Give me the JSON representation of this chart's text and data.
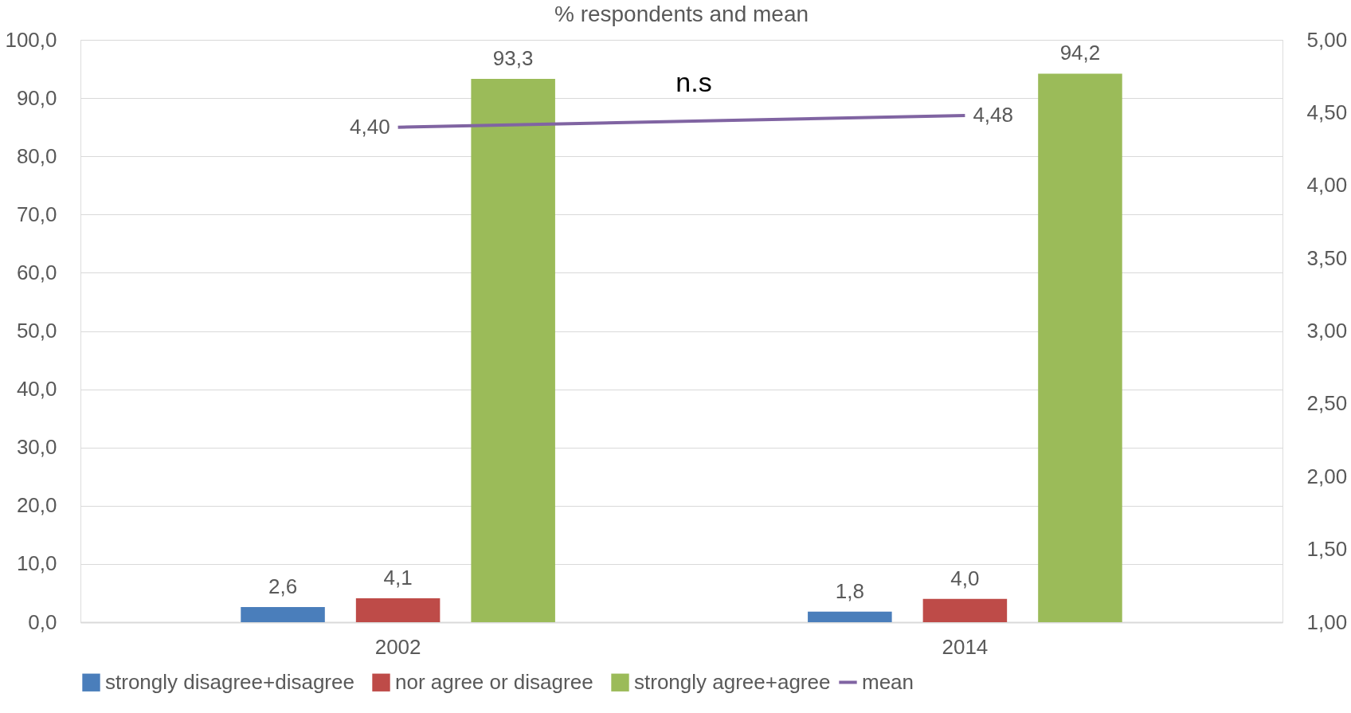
{
  "chart_data": {
    "type": "bar",
    "title": "% respondents and mean",
    "categories": [
      "2002",
      "2014"
    ],
    "series": [
      {
        "name": "strongly disagree+disagree",
        "color": "#4a7ebb",
        "values": [
          2.6,
          1.8
        ],
        "value_labels": [
          "2,6",
          "1,8"
        ]
      },
      {
        "name": "nor agree or disagree",
        "color": "#be4b48",
        "values": [
          4.1,
          4.0
        ],
        "value_labels": [
          "4,1",
          "4,0"
        ]
      },
      {
        "name": "strongly agree+agree",
        "color": "#9bbb59",
        "values": [
          93.3,
          94.2
        ],
        "value_labels": [
          "93,3",
          "94,2"
        ]
      },
      {
        "name": "mean",
        "color": "#8064a2",
        "type": "line",
        "axis": "y2",
        "values": [
          4.4,
          4.48
        ],
        "value_labels": [
          "4,40",
          "4,48"
        ]
      }
    ],
    "ylim": [
      0,
      100
    ],
    "yticks": [
      {
        "value": 0,
        "label": "0,0"
      },
      {
        "value": 10,
        "label": "10,0"
      },
      {
        "value": 20,
        "label": "20,0"
      },
      {
        "value": 30,
        "label": "30,0"
      },
      {
        "value": 40,
        "label": "40,0"
      },
      {
        "value": 50,
        "label": "50,0"
      },
      {
        "value": 60,
        "label": "60,0"
      },
      {
        "value": 70,
        "label": "70,0"
      },
      {
        "value": 80,
        "label": "80,0"
      },
      {
        "value": 90,
        "label": "90,0"
      },
      {
        "value": 100,
        "label": "100,0"
      }
    ],
    "y2lim": [
      1,
      5
    ],
    "y2ticks": [
      {
        "value": 1,
        "label": "1,00"
      },
      {
        "value": 1.5,
        "label": "1,50"
      },
      {
        "value": 2,
        "label": "2,00"
      },
      {
        "value": 2.5,
        "label": "2,50"
      },
      {
        "value": 3,
        "label": "3,00"
      },
      {
        "value": 3.5,
        "label": "3,50"
      },
      {
        "value": 4,
        "label": "4,00"
      },
      {
        "value": 4.5,
        "label": "4,50"
      },
      {
        "value": 5,
        "label": "5,00"
      }
    ],
    "annotations": [
      "n.s"
    ],
    "grid": "y",
    "legend": "bottom"
  }
}
